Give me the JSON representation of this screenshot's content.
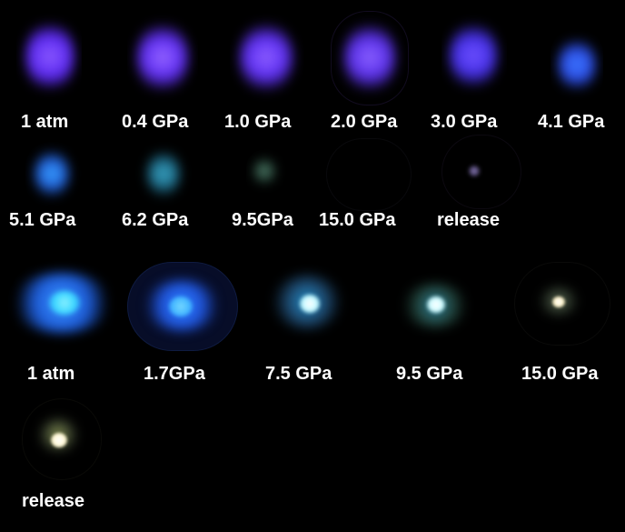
{
  "panels": {
    "row1": [
      "1 atm",
      "0.4 GPa",
      "1.0 GPa",
      "2.0 GPa",
      "3.0 GPa",
      "4.1 GPa"
    ],
    "row2": [
      "5.1 GPa",
      "6.2 GPa",
      "9.5GPa",
      "15.0 GPa",
      "release"
    ],
    "row3": [
      "1 atm",
      "1.7GPa",
      "7.5 GPa",
      "9.5 GPa",
      "15.0 GPa"
    ],
    "row4": [
      "release"
    ]
  },
  "colors": {
    "violet": "#6a34ff",
    "violet_core": "#9d6cff",
    "blue": "#2f72ff",
    "cyan": "#3ab9ff",
    "cyan_core": "#7ce6ff",
    "white_core": "#f4ffff",
    "warm_core": "#fff6d1",
    "green_tint": "#7ccf9a"
  }
}
